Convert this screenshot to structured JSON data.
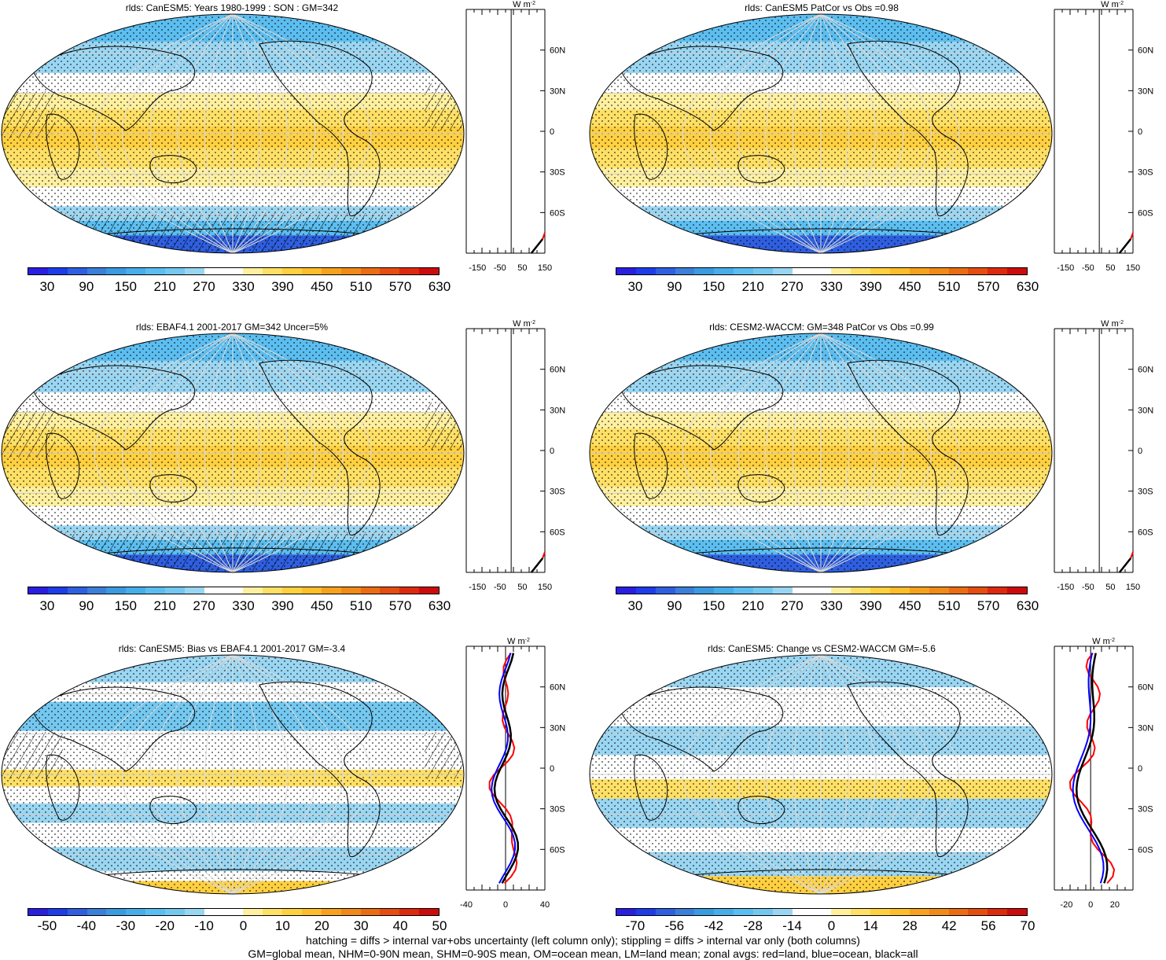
{
  "panels": [
    {
      "title": "rlds: CanESM5: Years 1980-1999 : SON : GM=342",
      "scale": "abs",
      "hatch": "abs"
    },
    {
      "title": "rlds: CanESM5 PatCor vs Obs =0.98",
      "scale": "abs",
      "hatch": "none"
    },
    {
      "title": "rlds: EBAF4.1 2001-2017 GM=342 Uncer=5%",
      "scale": "abs",
      "hatch": "abs"
    },
    {
      "title": "rlds: CESM2-WACCM: GM=348 PatCor vs Obs =0.99",
      "scale": "abs",
      "hatch": "none"
    },
    {
      "title": "rlds: CanESM5: Bias vs EBAF4.1 2001-2017  GM=-3.4",
      "scale": "diff",
      "hatch": "diff"
    },
    {
      "title": "rlds: CanESM5: Change vs CESM2-WACCM GM=-5.6",
      "scale": "diff",
      "hatch": "none"
    }
  ],
  "colorbars": {
    "abs": [
      "30",
      "90",
      "150",
      "210",
      "270",
      "330",
      "390",
      "450",
      "510",
      "570",
      "630"
    ],
    "bias": [
      "-50",
      "-40",
      "-30",
      "-20",
      "-10",
      "0",
      "10",
      "20",
      "30",
      "40",
      "50"
    ],
    "change": [
      "-70",
      "-56",
      "-42",
      "-28",
      "-14",
      "0",
      "14",
      "28",
      "42",
      "56",
      "70"
    ]
  },
  "palette": [
    "#2a1ee0",
    "#1e3ce8",
    "#2f5fe0",
    "#3c7fd8",
    "#3b9ae0",
    "#47aeea",
    "#5cbef0",
    "#74c8f0",
    "#9ad6f2",
    "#ffffff",
    "#ffffff",
    "#fff0a0",
    "#ffe066",
    "#ffd040",
    "#fdbe2a",
    "#f7a21e",
    "#f08a18",
    "#ea6d14",
    "#e54e10",
    "#dd2a0e",
    "#cc0c0c"
  ],
  "zonal": {
    "unit_w": "W",
    "unit_m": "m",
    "unit_exp": "-2",
    "lat_labels": [
      "60N",
      "30N",
      "0",
      "30S",
      "60S"
    ],
    "abs_ticks": [
      "-150",
      "-50",
      "50",
      "150"
    ],
    "bias_ticks": [
      "-40",
      "0",
      "40"
    ],
    "change_ticks": [
      "-20",
      "0",
      "20"
    ]
  },
  "footer": {
    "line1": "hatching = diffs > internal var+obs uncertainty (left column only); stippling = diffs > internal var only (both columns)",
    "line2": "GM=global mean, NHM=0-90N mean, SHM=0-90S mean, OM=ocean mean, LM=land mean; zonal avgs: red=land, blue=ocean, black=all"
  },
  "colors": {
    "land": "#ff0000",
    "ocean": "#0000ff",
    "all": "#000000"
  }
}
